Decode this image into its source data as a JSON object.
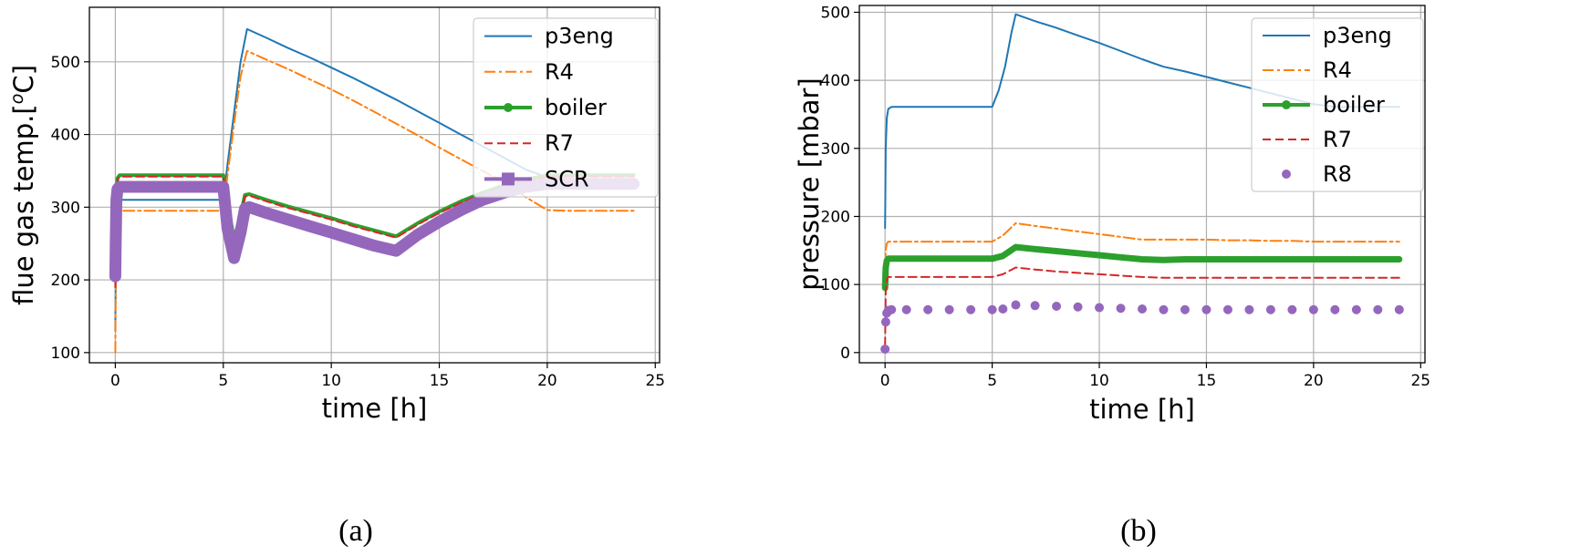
{
  "chart_data": [
    {
      "id": "a",
      "type": "line",
      "caption": "(a)",
      "title": "",
      "xlabel": "time [h]",
      "ylabel_base": "flue gas temp.[",
      "ylabel_sup": "o",
      "ylabel_end": "C]",
      "xlim": [
        -1.2,
        25.2
      ],
      "ylim": [
        86,
        575
      ],
      "xticks": [
        0,
        5,
        10,
        15,
        20,
        25
      ],
      "yticks": [
        100,
        200,
        300,
        400,
        500
      ],
      "grid": true,
      "legend_position": "top-right",
      "series": [
        {
          "name": "p3eng",
          "color": "#1f77b4",
          "style": "solid",
          "marker": "none",
          "width": 2,
          "x": [
            0,
            0.02,
            0.05,
            0.1,
            0.2,
            0.5,
            1,
            2,
            3,
            4,
            5,
            5.2,
            5.5,
            5.8,
            6.1,
            7,
            8,
            9,
            10,
            11,
            12,
            13,
            14,
            15,
            16,
            17,
            18,
            19,
            20,
            21,
            22,
            23,
            24
          ],
          "y": [
            130,
            215,
            290,
            305,
            310,
            310,
            310,
            310,
            310,
            310,
            310,
            360,
            430,
            500,
            545,
            533,
            519,
            506,
            492,
            478,
            463,
            448,
            432,
            416,
            400,
            384,
            368,
            352,
            341,
            339,
            338,
            337,
            336
          ]
        },
        {
          "name": "R4",
          "color": "#ff7f0e",
          "style": "dashdot",
          "marker": "none",
          "width": 2,
          "x": [
            0,
            0.02,
            0.05,
            0.1,
            0.2,
            0.5,
            1,
            2,
            3,
            4,
            5,
            5.2,
            5.5,
            5.8,
            6.1,
            7,
            8,
            9,
            10,
            11,
            12,
            13,
            14,
            15,
            16,
            17,
            18,
            19,
            20,
            21,
            22,
            23,
            24
          ],
          "y": [
            100,
            200,
            280,
            293,
            295,
            295,
            295,
            295,
            295,
            295,
            295,
            345,
            415,
            480,
            515,
            503,
            490,
            476,
            462,
            447,
            431,
            415,
            399,
            382,
            366,
            350,
            334,
            314,
            296,
            295,
            295,
            295,
            295
          ]
        },
        {
          "name": "boiler",
          "color": "#2ca02c",
          "style": "solid",
          "marker": "circle",
          "width": 4,
          "x": [
            0,
            0.02,
            0.05,
            0.1,
            0.2,
            0.5,
            1,
            2,
            3,
            4,
            5,
            5.2,
            5.5,
            5.8,
            6,
            6.2,
            7,
            8,
            9,
            10,
            11,
            12,
            13,
            14,
            15,
            16,
            17,
            18,
            19,
            20,
            21,
            22,
            23,
            24
          ],
          "y": [
            200,
            260,
            320,
            340,
            344,
            344,
            344,
            344,
            344,
            344,
            344,
            305,
            256,
            290,
            317,
            318,
            310,
            301,
            293,
            285,
            276,
            268,
            260,
            278,
            294,
            308,
            320,
            330,
            338,
            344,
            344,
            344,
            344,
            344
          ]
        },
        {
          "name": "R7",
          "color": "#d62728",
          "style": "dashed",
          "marker": "none",
          "width": 2,
          "x": [
            0,
            0.02,
            0.05,
            0.1,
            0.2,
            0.5,
            1,
            2,
            3,
            4,
            5,
            5.2,
            5.5,
            5.8,
            6,
            6.2,
            7,
            8,
            9,
            10,
            11,
            12,
            13,
            14,
            15,
            16,
            17,
            18,
            19,
            20,
            21,
            22,
            23,
            24
          ],
          "y": [
            190,
            255,
            318,
            338,
            342,
            342,
            342,
            342,
            342,
            342,
            342,
            303,
            254,
            288,
            315,
            316,
            308,
            299,
            291,
            283,
            274,
            266,
            258,
            276,
            292,
            306,
            318,
            328,
            336,
            342,
            342,
            342,
            342,
            342
          ]
        },
        {
          "name": "SCR",
          "color": "#9467bd",
          "style": "solid",
          "marker": "square",
          "width": 13,
          "x": [
            0,
            0.02,
            0.05,
            0.1,
            0.2,
            0.5,
            1,
            2,
            3,
            4,
            5,
            5.2,
            5.5,
            5.8,
            6,
            6.2,
            7,
            8,
            9,
            10,
            11,
            12,
            13,
            14,
            15,
            16,
            17,
            18,
            19,
            20,
            21,
            22,
            23,
            24
          ],
          "y": [
            205,
            255,
            310,
            325,
            328,
            328,
            328,
            328,
            328,
            328,
            328,
            270,
            230,
            265,
            298,
            300,
            292,
            283,
            274,
            265,
            256,
            247,
            240,
            262,
            280,
            296,
            310,
            320,
            328,
            332,
            332,
            332,
            332,
            332
          ]
        }
      ]
    },
    {
      "id": "b",
      "type": "line",
      "caption": "(b)",
      "title": "",
      "xlabel": "time [h]",
      "ylabel": "pressure [mbar]",
      "xlim": [
        -1.2,
        25.2
      ],
      "ylim": [
        -15,
        510
      ],
      "xticks": [
        0,
        5,
        10,
        15,
        20,
        25
      ],
      "yticks": [
        0,
        100,
        200,
        300,
        400,
        500
      ],
      "grid": true,
      "legend_position": "top-right",
      "series": [
        {
          "name": "p3eng",
          "color": "#1f77b4",
          "style": "solid",
          "marker": "none",
          "width": 2,
          "x": [
            0,
            0.03,
            0.08,
            0.15,
            0.3,
            1,
            2,
            3,
            4,
            5,
            5.3,
            5.6,
            5.9,
            6.1,
            7,
            8,
            9,
            10,
            11,
            12,
            13,
            14,
            15,
            16,
            17,
            18,
            19,
            20,
            21,
            22,
            23,
            24
          ],
          "y": [
            183,
            300,
            345,
            358,
            361,
            361,
            361,
            361,
            361,
            361,
            385,
            420,
            470,
            497,
            487,
            477,
            466,
            455,
            443,
            431,
            420,
            413,
            405,
            397,
            389,
            381,
            373,
            365,
            361,
            361,
            361,
            361
          ]
        },
        {
          "name": "R4",
          "color": "#ff7f0e",
          "style": "dashdot",
          "marker": "none",
          "width": 2,
          "x": [
            0,
            0.03,
            0.08,
            0.15,
            0.3,
            1,
            2,
            3,
            4,
            5,
            5.5,
            6.1,
            7,
            8,
            9,
            10,
            11,
            12,
            13,
            14,
            15,
            16,
            17,
            18,
            19,
            20,
            21,
            22,
            23,
            24
          ],
          "y": [
            120,
            150,
            160,
            163,
            163,
            163,
            163,
            163,
            163,
            163,
            172,
            190,
            186,
            182,
            178,
            174,
            170,
            166,
            166,
            166,
            166,
            165,
            165,
            164,
            164,
            163,
            163,
            163,
            163,
            163
          ]
        },
        {
          "name": "boiler",
          "color": "#2ca02c",
          "style": "solid",
          "marker": "circle",
          "width": 7,
          "x": [
            0,
            0.03,
            0.08,
            0.15,
            0.3,
            1,
            2,
            3,
            4,
            5,
            5.5,
            6.1,
            7,
            8,
            9,
            10,
            11,
            12,
            13,
            14,
            15,
            16,
            17,
            18,
            19,
            20,
            21,
            22,
            23,
            24
          ],
          "y": [
            95,
            125,
            135,
            138,
            138,
            138,
            138,
            138,
            138,
            138,
            142,
            155,
            152,
            149,
            146,
            143,
            140,
            137,
            136,
            137,
            137,
            137,
            137,
            137,
            137,
            137,
            137,
            137,
            137,
            137
          ]
        },
        {
          "name": "R7",
          "color": "#d62728",
          "style": "dashed",
          "marker": "none",
          "width": 2,
          "x": [
            0,
            0.03,
            0.08,
            0.15,
            0.3,
            1,
            2,
            3,
            4,
            5,
            5.5,
            6.1,
            7,
            8,
            9,
            10,
            11,
            12,
            13,
            14,
            15,
            16,
            17,
            18,
            19,
            20,
            21,
            22,
            23,
            24
          ],
          "y": [
            10,
            90,
            108,
            111,
            111,
            111,
            111,
            111,
            111,
            111,
            115,
            125,
            122,
            119,
            117,
            115,
            113,
            111,
            110,
            110,
            110,
            110,
            110,
            110,
            110,
            110,
            110,
            110,
            110,
            110
          ]
        },
        {
          "name": "R8",
          "color": "#9467bd",
          "style": "none",
          "marker": "circle",
          "width": 10,
          "x": [
            0,
            0.03,
            0.08,
            0.15,
            0.3,
            1,
            2,
            3,
            4,
            5,
            5.5,
            6.1,
            7,
            8,
            9,
            10,
            11,
            12,
            13,
            14,
            15,
            16,
            17,
            18,
            19,
            20,
            21,
            22,
            23,
            24
          ],
          "y": [
            5,
            45,
            58,
            62,
            63,
            63,
            63,
            63,
            63,
            63,
            64,
            70,
            69,
            68,
            67,
            66,
            65,
            64,
            63,
            63,
            63,
            63,
            63,
            63,
            63,
            63,
            63,
            63,
            63,
            63
          ]
        }
      ]
    }
  ]
}
